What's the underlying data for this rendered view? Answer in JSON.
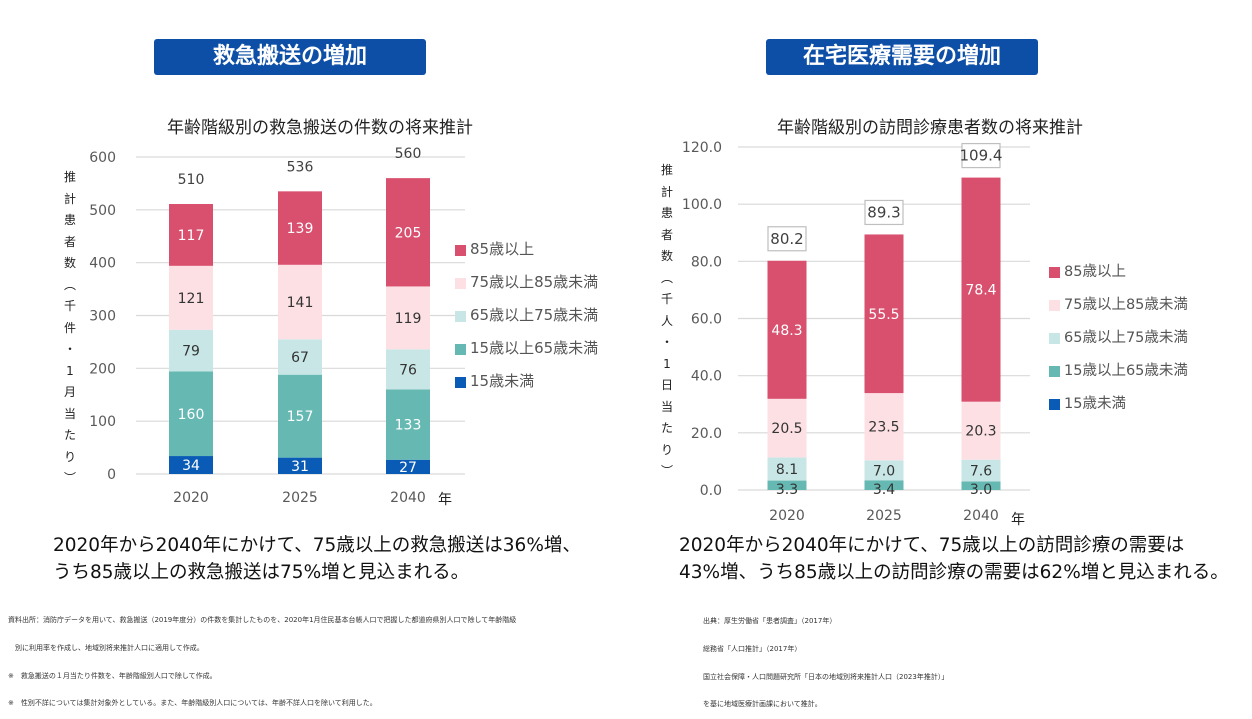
{
  "left": {
    "banner": "救急搬送の増加",
    "summary_lines": [
      "2020年から2040年にかけて、75歳以上の救急搬送は36%増、",
      "うち85歳以上の救急搬送は75%増と見込まれる。"
    ],
    "footnotes": [
      "資料出所：消防庁データを用いて、救急搬送（2019年度分）の件数を集計したものを、2020年1月住民基本台帳人口で把握した都道府県別人口で除して年齢階級",
      "　別に利用率を作成し、地域別将来推計人口に適用して作成。",
      "※　救急搬送の１月当たり件数を、年齢階級別人口で除して作成。",
      "※　性別不詳については集計対象外としている。また、年齢階級別人口については、年齢不詳人口を除いて利用した。"
    ]
  },
  "right": {
    "banner": "在宅医療需要の増加",
    "summary_lines": [
      "2020年から2040年にかけて、75歳以上の訪問診療の需要は",
      "43%増、うち85歳以上の訪問診療の需要は62%増と見込まれる。"
    ],
    "footnotes": [
      "出典：厚生労働省「患者調査」（2017年）",
      "総務省「人口推計」（2017年）",
      "国立社会保障・人口問題研究所「日本の地域別将来推計人口（2023年推計）」",
      "を基に地域医療計画課において推計。"
    ]
  },
  "colors": {
    "banner_bg": "#0d4ea6",
    "age85plus": "#d94f6e",
    "age75to85": "#fde0e4",
    "age65to75": "#c8e6e6",
    "age15to65": "#66b9b3",
    "under15": "#0a5bb5",
    "grid": "#d9d9d9"
  },
  "chart_data": [
    {
      "type": "bar",
      "stacked": true,
      "title": "年齢階級別の救急搬送の件数の将来推計",
      "xlabel": "年",
      "ylabel": "推計患者数（千件・1月当たり）",
      "ylabel_chars": [
        "推",
        "計",
        "患",
        "者",
        "数",
        "︵",
        "千",
        "件",
        "・",
        "1",
        "月",
        "当",
        "た",
        "り",
        "︶"
      ],
      "categories": [
        "2020",
        "2025",
        "2040"
      ],
      "ylim": [
        0,
        600
      ],
      "yticks": [
        0,
        100,
        200,
        300,
        400,
        500,
        600
      ],
      "ytick_labels": [
        "0",
        "100",
        "200",
        "300",
        "400",
        "500",
        "600"
      ],
      "grid": true,
      "legend_position": "right",
      "series": [
        {
          "name": "15歳未満",
          "key": "under15",
          "values": [
            34,
            31,
            27
          ]
        },
        {
          "name": "15歳以上65歳未満",
          "key": "age15to65",
          "values": [
            160,
            157,
            133
          ]
        },
        {
          "name": "65歳以上75歳未満",
          "key": "age65to75",
          "values": [
            79,
            67,
            76
          ]
        },
        {
          "name": "75歳以上85歳未満",
          "key": "age75to85",
          "values": [
            121,
            141,
            119
          ]
        },
        {
          "name": "85歳以上",
          "key": "age85plus",
          "values": [
            117,
            139,
            205
          ]
        }
      ],
      "totals": [
        510,
        536,
        560
      ],
      "total_labels_boxed": false,
      "legend_order": [
        "85歳以上",
        "75歳以上85歳未満",
        "65歳以上75歳未満",
        "15歳以上65歳未満",
        "15歳未満"
      ]
    },
    {
      "type": "bar",
      "stacked": true,
      "title": "年齢階級別の訪問診療患者数の将来推計",
      "xlabel": "年",
      "ylabel": "推計患者数（千人・1日当たり）",
      "ylabel_chars": [
        "推",
        "計",
        "患",
        "者",
        "数",
        "︵",
        "千",
        "人",
        "・",
        "1",
        "日",
        "当",
        "た",
        "り",
        "︶"
      ],
      "categories": [
        "2020",
        "2025",
        "2040"
      ],
      "ylim": [
        0,
        120
      ],
      "yticks": [
        0,
        20,
        40,
        60,
        80,
        100,
        120
      ],
      "ytick_labels": [
        "0.0",
        "20.0",
        "40.0",
        "60.0",
        "80.0",
        "100.0",
        "120.0"
      ],
      "grid": true,
      "legend_position": "right",
      "series": [
        {
          "name": "15歳未満",
          "key": "under15",
          "values": [
            0.0,
            0.0,
            0.0
          ],
          "labels": [
            "",
            "",
            ""
          ]
        },
        {
          "name": "15歳以上65歳未満",
          "key": "age15to65",
          "values": [
            3.3,
            3.4,
            3.0
          ],
          "labels": [
            "3.3",
            "3.4",
            "3.0"
          ]
        },
        {
          "name": "65歳以上75歳未満",
          "key": "age65to75",
          "values": [
            8.1,
            7.0,
            7.6
          ],
          "labels": [
            "8.1",
            "7.0",
            "7.6"
          ]
        },
        {
          "name": "75歳以上85歳未満",
          "key": "age75to85",
          "values": [
            20.5,
            23.5,
            20.3
          ],
          "labels": [
            "20.5",
            "23.5",
            "20.3"
          ]
        },
        {
          "name": "85歳以上",
          "key": "age85plus",
          "values": [
            48.3,
            55.5,
            78.4
          ],
          "labels": [
            "48.3",
            "55.5",
            "78.4"
          ]
        }
      ],
      "totals": [
        "80.2",
        "89.3",
        "109.4"
      ],
      "total_labels_boxed": true,
      "legend_order": [
        "85歳以上",
        "75歳以上85歳未満",
        "65歳以上75歳未満",
        "15歳以上65歳未満",
        "15歳未満"
      ]
    }
  ]
}
